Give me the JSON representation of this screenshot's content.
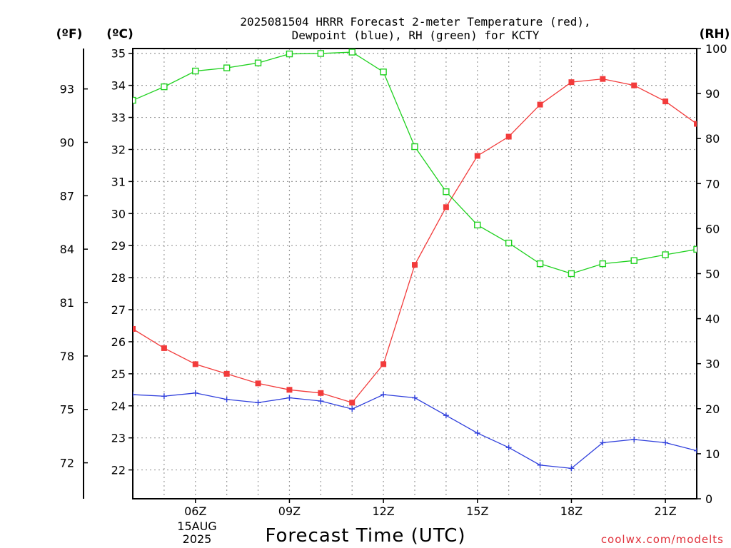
{
  "title_line1": "2025081504 HRRR Forecast 2-meter Temperature (red),",
  "title_line2": "Dewpoint (blue), RH (green) for KCTY",
  "units": {
    "fahrenheit": "(ºF)",
    "celsius": "(ºC)",
    "rh": "(RH)"
  },
  "xlabel": "Forecast Time (UTC)",
  "date_label": {
    "day": "15AUG",
    "year": "2025"
  },
  "watermark": "coolwx.com/modelts",
  "colors": {
    "temperature": "#f23b3b",
    "dewpoint": "#2f3fdc",
    "rh": "#1fd11f",
    "grid": "#9a9a9a"
  },
  "chart_data": {
    "type": "line",
    "x": [
      4,
      5,
      6,
      7,
      8,
      9,
      10,
      11,
      12,
      13,
      14,
      15,
      16,
      17,
      18,
      19,
      20,
      21,
      22
    ],
    "xlim": [
      4,
      22
    ],
    "x_ticks": [
      {
        "value": 6,
        "label": "06Z"
      },
      {
        "value": 9,
        "label": "09Z"
      },
      {
        "value": 12,
        "label": "12Z"
      },
      {
        "value": 15,
        "label": "15Z"
      },
      {
        "value": 18,
        "label": "18Z"
      },
      {
        "value": 21,
        "label": "21Z"
      }
    ],
    "celsius_axis": {
      "lim": [
        21.1,
        35.15
      ],
      "ticks": [
        22,
        23,
        24,
        25,
        26,
        27,
        28,
        29,
        30,
        31,
        32,
        33,
        34,
        35
      ]
    },
    "fahrenheit_axis": {
      "ticks": [
        72,
        75,
        78,
        81,
        84,
        87,
        90,
        93
      ]
    },
    "rh_axis": {
      "lim": [
        0,
        100
      ],
      "ticks": [
        0,
        10,
        20,
        30,
        40,
        50,
        60,
        70,
        80,
        90,
        100
      ]
    },
    "grid": true,
    "series": [
      {
        "axis": "celsius",
        "marker": "filled-square",
        "color": "#f23b3b",
        "values": [
          26.4,
          25.8,
          25.3,
          25.0,
          24.7,
          24.5,
          24.4,
          24.1,
          25.3,
          28.4,
          30.2,
          31.8,
          32.4,
          33.4,
          34.1,
          34.2,
          34.0,
          33.5,
          32.8
        ]
      },
      {
        "axis": "celsius",
        "marker": "plus",
        "color": "#2f3fdc",
        "values": [
          24.35,
          24.3,
          24.4,
          24.2,
          24.1,
          24.25,
          24.15,
          23.9,
          24.35,
          24.25,
          23.7,
          23.15,
          22.7,
          22.15,
          22.05,
          22.85,
          22.95,
          22.85,
          22.6
        ]
      },
      {
        "axis": "rh",
        "marker": "open-square",
        "color": "#1fd11f",
        "values": [
          88.5,
          91.5,
          95.0,
          95.7,
          96.8,
          98.8,
          98.9,
          99.2,
          94.8,
          78.2,
          68.2,
          60.8,
          56.8,
          52.2,
          50.0,
          52.2,
          52.9,
          54.2,
          55.4
        ]
      }
    ]
  }
}
